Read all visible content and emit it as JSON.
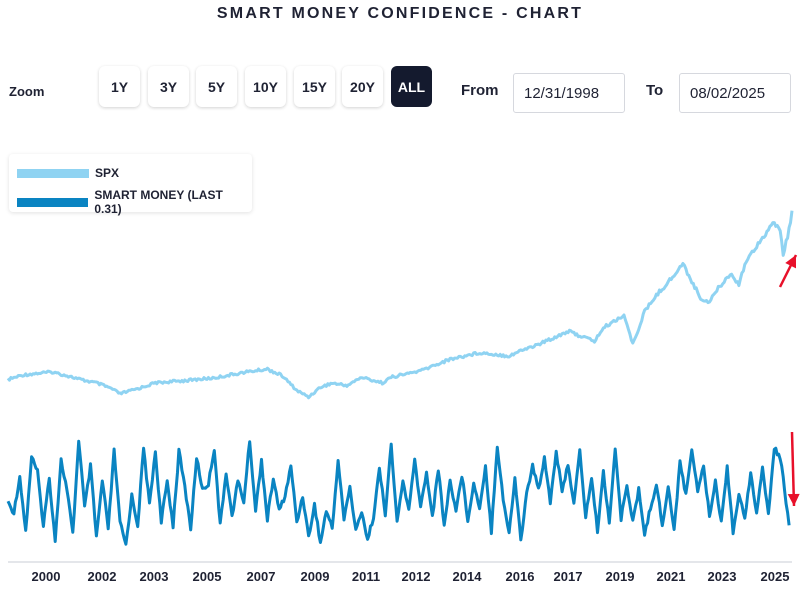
{
  "title": "SMART MONEY CONFIDENCE - CHART",
  "zoom": {
    "label": "Zoom",
    "buttons": [
      "1Y",
      "3Y",
      "5Y",
      "10Y",
      "15Y",
      "20Y",
      "ALL"
    ],
    "active": "ALL"
  },
  "range": {
    "from_label": "From",
    "from_value": "12/31/1998",
    "to_label": "To",
    "to_value": "08/02/2025"
  },
  "colors": {
    "spx": "#8fd3f2",
    "smart_money": "#0a84c2",
    "arrow": "#e8102a",
    "axis": "#c8ccd4",
    "active_button": "#141a2e"
  },
  "chart_data": {
    "type": "line",
    "title": "SMART MONEY CONFIDENCE - CHART",
    "x_ticks": [
      "2000",
      "2002",
      "2003",
      "2005",
      "2007",
      "2009",
      "2011",
      "2012",
      "2014",
      "2016",
      "2017",
      "2019",
      "2021",
      "2023",
      "2025"
    ],
    "x_range": [
      1999.0,
      2025.6
    ],
    "legend": {
      "position": "top-left"
    },
    "series": [
      {
        "name": "SPX",
        "legend_label": "SPX",
        "ylim": [
          0,
          7000
        ],
        "points": [
          [
            1999.0,
            1230
          ],
          [
            1999.5,
            1370
          ],
          [
            2000.0,
            1420
          ],
          [
            2000.5,
            1460
          ],
          [
            2001.0,
            1350
          ],
          [
            2001.5,
            1220
          ],
          [
            2002.0,
            1130
          ],
          [
            2002.5,
            960
          ],
          [
            2002.8,
            800
          ],
          [
            2003.0,
            850
          ],
          [
            2003.5,
            980
          ],
          [
            2004.0,
            1130
          ],
          [
            2005.0,
            1200
          ],
          [
            2006.0,
            1280
          ],
          [
            2007.0,
            1450
          ],
          [
            2007.8,
            1550
          ],
          [
            2008.3,
            1350
          ],
          [
            2008.8,
            900
          ],
          [
            2009.2,
            700
          ],
          [
            2009.6,
            1000
          ],
          [
            2010.0,
            1120
          ],
          [
            2010.5,
            1050
          ],
          [
            2011.0,
            1300
          ],
          [
            2011.7,
            1130
          ],
          [
            2012.0,
            1300
          ],
          [
            2013.0,
            1500
          ],
          [
            2014.0,
            1850
          ],
          [
            2015.0,
            2050
          ],
          [
            2016.0,
            1950
          ],
          [
            2016.5,
            2150
          ],
          [
            2017.0,
            2300
          ],
          [
            2018.0,
            2700
          ],
          [
            2018.9,
            2400
          ],
          [
            2019.2,
            2800
          ],
          [
            2019.9,
            3200
          ],
          [
            2020.2,
            2300
          ],
          [
            2020.6,
            3300
          ],
          [
            2021.0,
            3800
          ],
          [
            2021.5,
            4300
          ],
          [
            2021.9,
            4750
          ],
          [
            2022.5,
            3700
          ],
          [
            2022.8,
            3600
          ],
          [
            2023.0,
            3900
          ],
          [
            2023.5,
            4450
          ],
          [
            2023.8,
            4150
          ],
          [
            2024.0,
            4750
          ],
          [
            2024.5,
            5450
          ],
          [
            2025.0,
            6000
          ],
          [
            2025.2,
            5800
          ],
          [
            2025.3,
            5000
          ],
          [
            2025.45,
            5600
          ],
          [
            2025.6,
            6300
          ]
        ]
      },
      {
        "name": "SMART MONEY",
        "legend_label": "SMART MONEY (LAST 0.31)",
        "last": 0.31,
        "ylim": [
          -0.2,
          2.5
        ],
        "points": [
          [
            1999.0,
            0.68
          ],
          [
            1999.2,
            0.52
          ],
          [
            1999.4,
            1.12
          ],
          [
            1999.6,
            0.2
          ],
          [
            1999.8,
            1.45
          ],
          [
            2000.0,
            1.2
          ],
          [
            2000.2,
            0.3
          ],
          [
            2000.4,
            1.1
          ],
          [
            2000.6,
            0.05
          ],
          [
            2000.8,
            1.4
          ],
          [
            2001.0,
            0.9
          ],
          [
            2001.2,
            0.15
          ],
          [
            2001.4,
            1.75
          ],
          [
            2001.6,
            0.6
          ],
          [
            2001.8,
            1.3
          ],
          [
            2002.0,
            0.1
          ],
          [
            2002.2,
            1.05
          ],
          [
            2002.4,
            0.25
          ],
          [
            2002.6,
            1.55
          ],
          [
            2002.8,
            0.35
          ],
          [
            2003.0,
            -0.03
          ],
          [
            2003.2,
            0.8
          ],
          [
            2003.4,
            0.3
          ],
          [
            2003.6,
            1.6
          ],
          [
            2003.8,
            0.65
          ],
          [
            2004.0,
            1.55
          ],
          [
            2004.2,
            0.35
          ],
          [
            2004.4,
            1.05
          ],
          [
            2004.6,
            0.3
          ],
          [
            2004.8,
            1.55
          ],
          [
            2005.0,
            0.95
          ],
          [
            2005.2,
            0.25
          ],
          [
            2005.4,
            1.45
          ],
          [
            2005.6,
            0.9
          ],
          [
            2005.8,
            1.0
          ],
          [
            2006.0,
            1.6
          ],
          [
            2006.2,
            0.3
          ],
          [
            2006.4,
            1.2
          ],
          [
            2006.6,
            0.45
          ],
          [
            2006.8,
            1.05
          ],
          [
            2007.0,
            0.7
          ],
          [
            2007.2,
            1.73
          ],
          [
            2007.4,
            0.55
          ],
          [
            2007.6,
            1.4
          ],
          [
            2007.8,
            0.4
          ],
          [
            2008.0,
            1.1
          ],
          [
            2008.2,
            0.55
          ],
          [
            2008.4,
            0.8
          ],
          [
            2008.6,
            1.3
          ],
          [
            2008.8,
            0.35
          ],
          [
            2009.0,
            0.8
          ],
          [
            2009.2,
            0.1
          ],
          [
            2009.4,
            0.65
          ],
          [
            2009.6,
            0.0
          ],
          [
            2009.8,
            0.55
          ],
          [
            2010.0,
            0.25
          ],
          [
            2010.2,
            1.4
          ],
          [
            2010.4,
            0.4
          ],
          [
            2010.6,
            0.95
          ],
          [
            2010.8,
            0.2
          ],
          [
            2011.0,
            0.55
          ],
          [
            2011.2,
            0.05
          ],
          [
            2011.4,
            0.45
          ],
          [
            2011.6,
            1.25
          ],
          [
            2011.8,
            0.5
          ],
          [
            2012.0,
            1.65
          ],
          [
            2012.2,
            0.35
          ],
          [
            2012.4,
            1.05
          ],
          [
            2012.6,
            0.55
          ],
          [
            2012.8,
            1.4
          ],
          [
            2013.0,
            0.6
          ],
          [
            2013.2,
            1.2
          ],
          [
            2013.4,
            0.45
          ],
          [
            2013.6,
            1.25
          ],
          [
            2013.8,
            0.3
          ],
          [
            2014.0,
            1.05
          ],
          [
            2014.2,
            0.55
          ],
          [
            2014.4,
            1.15
          ],
          [
            2014.6,
            0.4
          ],
          [
            2014.8,
            1.0
          ],
          [
            2015.0,
            0.6
          ],
          [
            2015.2,
            1.3
          ],
          [
            2015.4,
            0.2
          ],
          [
            2015.6,
            1.65
          ],
          [
            2015.8,
            0.75
          ],
          [
            2016.0,
            0.15
          ],
          [
            2016.2,
            1.1
          ],
          [
            2016.4,
            0.05
          ],
          [
            2016.6,
            0.85
          ],
          [
            2016.8,
            1.3
          ],
          [
            2017.0,
            0.9
          ],
          [
            2017.2,
            1.45
          ],
          [
            2017.4,
            0.7
          ],
          [
            2017.6,
            1.55
          ],
          [
            2017.8,
            0.85
          ],
          [
            2018.0,
            1.35
          ],
          [
            2018.2,
            0.65
          ],
          [
            2018.4,
            1.55
          ],
          [
            2018.6,
            0.45
          ],
          [
            2018.8,
            1.1
          ],
          [
            2019.0,
            0.2
          ],
          [
            2019.2,
            1.2
          ],
          [
            2019.4,
            0.35
          ],
          [
            2019.6,
            1.6
          ],
          [
            2019.8,
            0.4
          ],
          [
            2020.0,
            1.0
          ],
          [
            2020.2,
            0.35
          ],
          [
            2020.4,
            0.9
          ],
          [
            2020.6,
            0.15
          ],
          [
            2020.8,
            0.6
          ],
          [
            2021.0,
            1.0
          ],
          [
            2021.2,
            0.3
          ],
          [
            2021.4,
            0.95
          ],
          [
            2021.6,
            0.2
          ],
          [
            2021.8,
            1.4
          ],
          [
            2022.0,
            0.8
          ],
          [
            2022.2,
            1.6
          ],
          [
            2022.4,
            0.9
          ],
          [
            2022.6,
            1.3
          ],
          [
            2022.8,
            0.45
          ],
          [
            2023.0,
            1.05
          ],
          [
            2023.2,
            0.35
          ],
          [
            2023.4,
            1.3
          ],
          [
            2023.6,
            0.2
          ],
          [
            2023.8,
            0.8
          ],
          [
            2024.0,
            0.45
          ],
          [
            2024.2,
            1.2
          ],
          [
            2024.4,
            0.5
          ],
          [
            2024.6,
            1.25
          ],
          [
            2024.8,
            0.5
          ],
          [
            2025.0,
            1.6
          ],
          [
            2025.2,
            1.45
          ],
          [
            2025.35,
            0.9
          ],
          [
            2025.5,
            0.31
          ]
        ]
      }
    ]
  }
}
